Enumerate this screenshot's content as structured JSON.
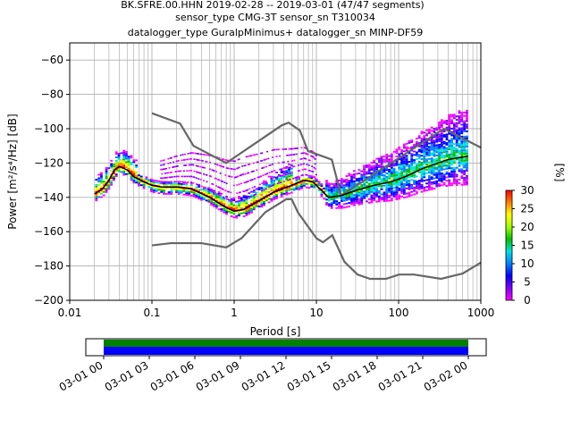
{
  "chart_data": {
    "type": "heatmap",
    "title_lines": [
      "BK.SFRE.00.HHN   2019-02-28 -- 2019-03-01  (47/47 segments)",
      "sensor_type CMG-3T sensor_sn T310034",
      "datalogger_type GuralpMinimus+ datalogger_sn MINP-DF59"
    ],
    "xlabel": "Period [s]",
    "ylabel": "Power [m²/s⁴/Hz] [dB]",
    "x_scale": "log",
    "xlim": [
      0.01,
      1000
    ],
    "ylim": [
      -200,
      -50
    ],
    "x_ticks": [
      {
        "value": 0.01,
        "label": "0.01"
      },
      {
        "value": 0.1,
        "label": "0.1"
      },
      {
        "value": 1,
        "label": "1"
      },
      {
        "value": 10,
        "label": "10"
      },
      {
        "value": 100,
        "label": "100"
      },
      {
        "value": 1000,
        "label": "1000"
      }
    ],
    "y_ticks": [
      -200,
      -180,
      -160,
      -140,
      -120,
      -100,
      -80,
      -60
    ],
    "grid": true,
    "colorbar": {
      "label": "[%]",
      "range": [
        0,
        30
      ],
      "ticks": [
        0,
        5,
        10,
        15,
        20,
        25,
        30
      ],
      "colors": [
        "#ff00ff",
        "#8000ff",
        "#0000ff",
        "#0080ff",
        "#00e0e0",
        "#00c000",
        "#a0ff00",
        "#ffff00",
        "#ff8000",
        "#ff0000"
      ]
    },
    "noise_models": {
      "high": {
        "color": "#666666",
        "points": [
          [
            0.1,
            -91
          ],
          [
            0.22,
            -97
          ],
          [
            0.32,
            -110
          ],
          [
            0.8,
            -120
          ],
          [
            3.8,
            -98
          ],
          [
            4.6,
            -96.5
          ],
          [
            6.3,
            -101
          ],
          [
            7.9,
            -113
          ],
          [
            15.4,
            -118
          ],
          [
            20,
            -139
          ],
          [
            354.8,
            -100
          ],
          [
            1000,
            -111
          ]
        ]
      },
      "low": {
        "color": "#666666",
        "points": [
          [
            0.1,
            -168
          ],
          [
            0.17,
            -166.7
          ],
          [
            0.4,
            -166.7
          ],
          [
            0.8,
            -169.2
          ],
          [
            1.24,
            -163.7
          ],
          [
            2.4,
            -148.6
          ],
          [
            4.3,
            -141.1
          ],
          [
            5,
            -141.1
          ],
          [
            6,
            -149
          ],
          [
            10,
            -163.8
          ],
          [
            12,
            -166.2
          ],
          [
            15.6,
            -162.1
          ],
          [
            21.9,
            -177.5
          ],
          [
            31.6,
            -185
          ],
          [
            45,
            -187.5
          ],
          [
            70,
            -187.5
          ],
          [
            101,
            -185
          ],
          [
            154,
            -185
          ],
          [
            328,
            -187.5
          ],
          [
            600,
            -184.4
          ],
          [
            1000,
            -178
          ]
        ]
      }
    },
    "mode_line": {
      "color": "#000000",
      "points": [
        [
          0.02,
          -138
        ],
        [
          0.025,
          -135
        ],
        [
          0.03,
          -130
        ],
        [
          0.035,
          -124
        ],
        [
          0.04,
          -122
        ],
        [
          0.05,
          -124
        ],
        [
          0.06,
          -128
        ],
        [
          0.08,
          -131
        ],
        [
          0.1,
          -133
        ],
        [
          0.13,
          -134
        ],
        [
          0.2,
          -134
        ],
        [
          0.3,
          -135
        ],
        [
          0.5,
          -140
        ],
        [
          0.8,
          -146
        ],
        [
          1,
          -148
        ],
        [
          1.3,
          -147
        ],
        [
          2,
          -142
        ],
        [
          3,
          -137
        ],
        [
          5,
          -133
        ],
        [
          7,
          -130
        ],
        [
          9,
          -131
        ],
        [
          11,
          -135
        ],
        [
          14,
          -140
        ],
        [
          20,
          -139
        ],
        [
          30,
          -136
        ],
        [
          50,
          -133
        ],
        [
          80,
          -131
        ],
        [
          120,
          -128
        ],
        [
          200,
          -123
        ],
        [
          400,
          -118
        ],
        [
          700,
          -116
        ]
      ]
    }
  },
  "timeline": {
    "ticks": [
      "03-01 00",
      "03-01 03",
      "03-01 06",
      "03-01 09",
      "03-01 12",
      "03-01 15",
      "03-01 18",
      "03-01 21",
      "03-02 00"
    ],
    "coverage_color": "#0000ff",
    "availability_color": "#008000"
  }
}
